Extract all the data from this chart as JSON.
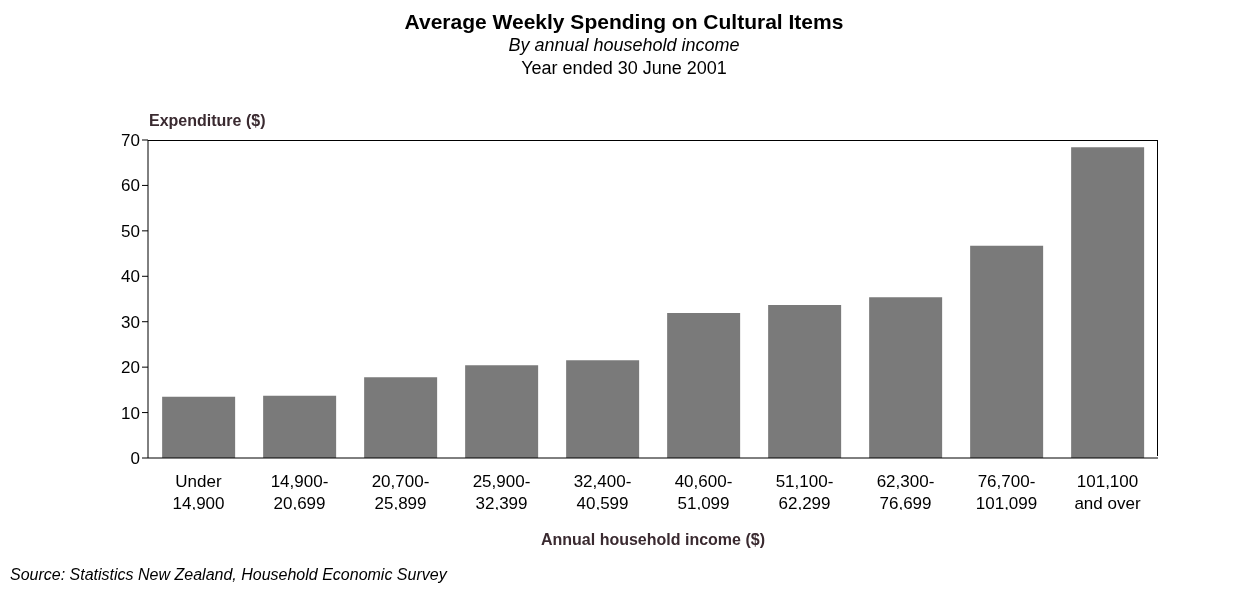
{
  "chart_data": {
    "type": "bar",
    "title": "Average Weekly Spending on Cultural Items",
    "subtitle": "By annual household income",
    "annotations": [
      "Year ended 30 June 2001",
      "Source: Statistics New Zealand, Household Economic Survey"
    ],
    "xlabel": "Annual household income ($)",
    "ylabel": "Expenditure ($)",
    "categories": [
      "Under 14,900",
      "14,900-20,699",
      "20,700-25,899",
      "25,900-32,399",
      "32,400-40,599",
      "40,600-51,099",
      "51,100-62,299",
      "62,300-76,699",
      "76,700-101,099",
      "101,100 and over"
    ],
    "values": [
      13.5,
      13.7,
      17.8,
      20.4,
      21.5,
      31.9,
      33.7,
      35.4,
      46.7,
      68.4
    ],
    "color": "#7a7a7a",
    "ylim": [
      0,
      70
    ],
    "yticks": [
      0,
      10,
      20,
      30,
      40,
      50,
      60,
      70
    ],
    "grid": false,
    "legend": false
  }
}
